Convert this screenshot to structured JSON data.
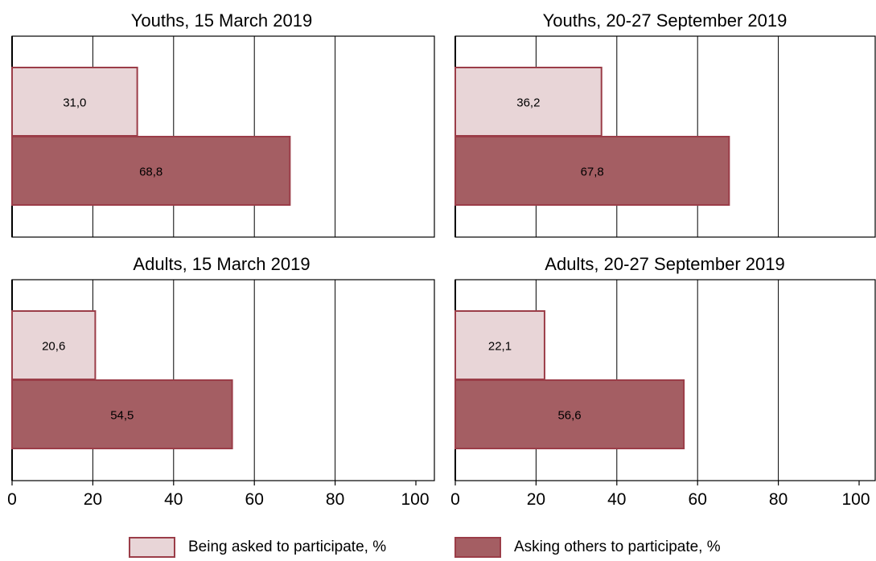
{
  "colors": {
    "asked_fill": "#e8d5d7",
    "asking_fill": "#a45e63",
    "bar_stroke": "#9b3d48"
  },
  "legend": {
    "asked_label": "Being asked to participate, %",
    "asking_label": "Asking others to participate, %"
  },
  "chart_data": [
    {
      "type": "bar",
      "orientation": "horizontal",
      "title": "Youths, 15 March 2019",
      "series": [
        {
          "name": "Being asked to participate, %",
          "values": [
            31.0
          ],
          "labels": [
            "31,0"
          ]
        },
        {
          "name": "Asking others to participate, %",
          "values": [
            68.8
          ],
          "labels": [
            "68,8"
          ]
        }
      ],
      "xlim": [
        0,
        100
      ],
      "xticks": [
        "0",
        "20",
        "40",
        "60",
        "80",
        "100"
      ],
      "grid": true
    },
    {
      "type": "bar",
      "orientation": "horizontal",
      "title": "Youths, 20-27 September 2019",
      "series": [
        {
          "name": "Being asked to participate, %",
          "values": [
            36.2
          ],
          "labels": [
            "36,2"
          ]
        },
        {
          "name": "Asking others to participate, %",
          "values": [
            67.8
          ],
          "labels": [
            "67,8"
          ]
        }
      ],
      "xlim": [
        0,
        100
      ],
      "xticks": [
        "0",
        "20",
        "40",
        "60",
        "80",
        "100"
      ],
      "grid": true
    },
    {
      "type": "bar",
      "orientation": "horizontal",
      "title": "Adults, 15 March 2019",
      "series": [
        {
          "name": "Being asked to participate, %",
          "values": [
            20.6
          ],
          "labels": [
            "20,6"
          ]
        },
        {
          "name": "Asking others to participate, %",
          "values": [
            54.5
          ],
          "labels": [
            "54,5"
          ]
        }
      ],
      "xlim": [
        0,
        100
      ],
      "xticks": [
        "0",
        "20",
        "40",
        "60",
        "80",
        "100"
      ],
      "grid": true
    },
    {
      "type": "bar",
      "orientation": "horizontal",
      "title": "Adults, 20-27 September 2019",
      "series": [
        {
          "name": "Being asked to participate, %",
          "values": [
            22.1
          ],
          "labels": [
            "22,1"
          ]
        },
        {
          "name": "Asking others to participate, %",
          "values": [
            56.6
          ],
          "labels": [
            "56,6"
          ]
        }
      ],
      "xlim": [
        0,
        100
      ],
      "xticks": [
        "0",
        "20",
        "40",
        "60",
        "80",
        "100"
      ],
      "grid": true
    }
  ]
}
